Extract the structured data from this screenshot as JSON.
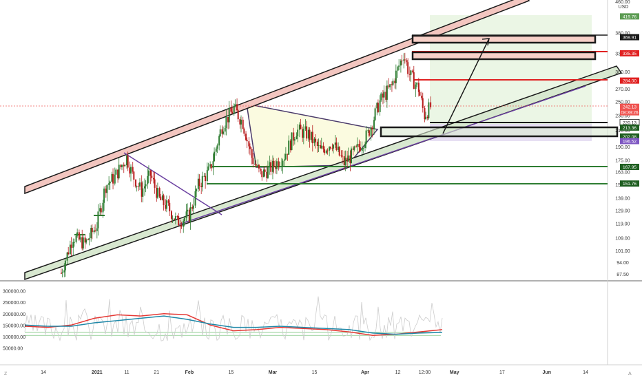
{
  "price_axis": {
    "currency": "USD",
    "ticks": [
      "460.00",
      "380.00",
      "335.00",
      "300.00",
      "270.00",
      "250.00",
      "230.00",
      "210.00",
      "190.00",
      "175.00",
      "163.00",
      "151.00",
      "139.00",
      "129.00",
      "119.00",
      "109.00",
      "101.00",
      "94.00",
      "87.50"
    ]
  },
  "volume_axis": {
    "ticks": [
      "300000.00",
      "250000.00",
      "200000.00",
      "150000.00",
      "100000.00",
      "50000.00"
    ]
  },
  "time_axis": {
    "ticks": [
      "14",
      "2021",
      "11",
      "21",
      "Feb",
      "15",
      "Mar",
      "15",
      "Apr",
      "12",
      "12:00",
      "May",
      "17",
      "Jun",
      "14"
    ]
  },
  "price_tags": [
    {
      "label": "419.76",
      "color": "#5b9b52",
      "text_color": "#ffffff"
    },
    {
      "label": "369.91",
      "color": "#1a1a1a",
      "text_color": "#ffffff"
    },
    {
      "label": "335.35",
      "color": "#e02020",
      "text_color": "#ffffff"
    },
    {
      "label": "284.00",
      "color": "#e02020",
      "text_color": "#ffffff"
    },
    {
      "label": "242.13",
      "sublabel": "08:39:26",
      "color": "#ef5350",
      "text_color": "#ffffff"
    },
    {
      "label": "220.13",
      "color": "#ffffff",
      "text_color": "#1a1a1a"
    },
    {
      "label": "213.36",
      "color": "#1e5e20",
      "text_color": "#ffffff"
    },
    {
      "label": "202.08",
      "color": "#1e5e20",
      "text_color": "#ffffff"
    },
    {
      "label": "196.52",
      "color": "#7e57c2",
      "text_color": "#ffffff"
    },
    {
      "label": "167.95",
      "color": "#1e5e20",
      "text_color": "#ffffff"
    },
    {
      "label": "151.76",
      "color": "#1e5e20",
      "text_color": "#ffffff"
    }
  ],
  "colors": {
    "bull": "#26a69a",
    "bear": "#ef5350",
    "candle_bull": "#2e7d32",
    "candle_bear": "#b71c1c",
    "channel_upper": "#f3c6c0",
    "channel_lower": "#d8e8d0",
    "triangle": "#fbfbe0",
    "target_zone": "#e8f5e0",
    "stop_zone": "#e7e0f3",
    "ma_red": "#e53935",
    "ma_teal": "#1e88a8",
    "volume_line": "#cccccc",
    "support_line": "#2e7d32",
    "resistance_line": "#e02020"
  },
  "corner_labels": {
    "left": "Z",
    "right": "A"
  },
  "chart_data": {
    "type": "candlestick",
    "ylabel": "USD",
    "ylim": [
      85,
      460
    ],
    "y_scale": "log",
    "x": [
      "2020-12-14",
      "2021-01-01",
      "2021-01-11",
      "2021-01-21",
      "2021-02-01",
      "2021-02-15",
      "2021-03-01",
      "2021-03-15",
      "2021-04-01",
      "2021-04-12",
      "2021-05-01",
      "2021-05-17",
      "2021-06-01",
      "2021-06-14"
    ],
    "close_path": [
      [
        "2020-12-20",
        88
      ],
      [
        "2020-12-24",
        110
      ],
      [
        "2020-12-28",
        105
      ],
      [
        "2021-01-01",
        118
      ],
      [
        "2021-01-04",
        150
      ],
      [
        "2021-01-07",
        158
      ],
      [
        "2021-01-11",
        178
      ],
      [
        "2021-01-13",
        160
      ],
      [
        "2021-01-16",
        145
      ],
      [
        "2021-01-19",
        160
      ],
      [
        "2021-01-22",
        138
      ],
      [
        "2021-01-25",
        131
      ],
      [
        "2021-01-28",
        120
      ],
      [
        "2021-02-01",
        125
      ],
      [
        "2021-02-04",
        150
      ],
      [
        "2021-02-08",
        165
      ],
      [
        "2021-02-12",
        215
      ],
      [
        "2021-02-16",
        240
      ],
      [
        "2021-02-19",
        220
      ],
      [
        "2021-02-22",
        178
      ],
      [
        "2021-02-25",
        160
      ],
      [
        "2021-03-01",
        168
      ],
      [
        "2021-03-05",
        180
      ],
      [
        "2021-03-09",
        210
      ],
      [
        "2021-03-13",
        205
      ],
      [
        "2021-03-17",
        185
      ],
      [
        "2021-03-21",
        195
      ],
      [
        "2021-03-25",
        172
      ],
      [
        "2021-03-29",
        185
      ],
      [
        "2021-04-02",
        205
      ],
      [
        "2021-04-06",
        250
      ],
      [
        "2021-04-10",
        275
      ],
      [
        "2021-04-14",
        335
      ],
      [
        "2021-04-16",
        295
      ],
      [
        "2021-04-19",
        270
      ],
      [
        "2021-04-21",
        230
      ],
      [
        "2021-04-23",
        242
      ]
    ],
    "levels": [
      419.76,
      369.91,
      335.35,
      284.0,
      242.13,
      220.13,
      213.36,
      202.08,
      196.52,
      167.95,
      151.76
    ],
    "volume_indicator": {
      "ylim": [
        0,
        320000
      ],
      "series": [
        {
          "color": "#e53935",
          "values": [
            145000,
            140000,
            150000,
            180000,
            195000,
            190000,
            200000,
            195000,
            150000,
            125000,
            130000,
            140000,
            135000,
            130000,
            120000,
            105000,
            110000,
            120000,
            130000
          ]
        },
        {
          "color": "#1e88a8",
          "values": [
            150000,
            145000,
            145000,
            160000,
            170000,
            180000,
            190000,
            175000,
            155000,
            140000,
            140000,
            145000,
            140000,
            135000,
            130000,
            115000,
            110000,
            115000,
            118000
          ]
        }
      ]
    }
  }
}
